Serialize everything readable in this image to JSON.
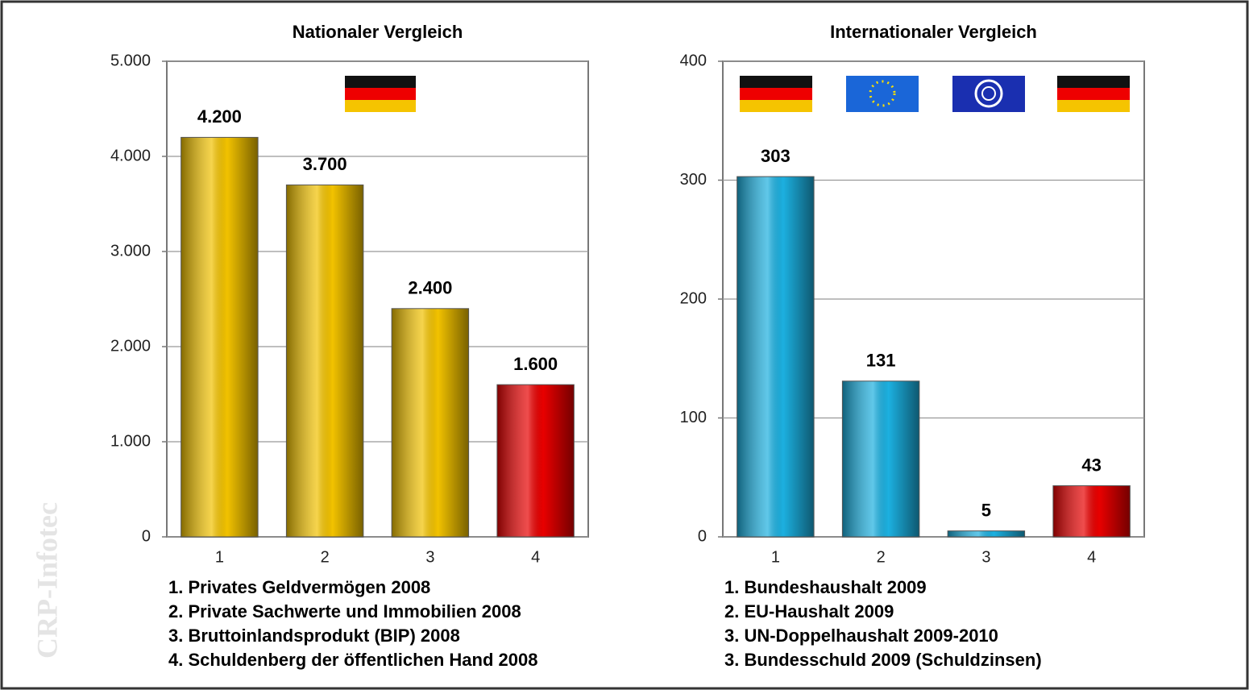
{
  "chart_data": [
    {
      "type": "bar",
      "title": "Nationaler Vergleich",
      "categories": [
        "1",
        "2",
        "3",
        "4"
      ],
      "values": [
        4200,
        3700,
        2400,
        1600
      ],
      "value_labels": [
        "4.200",
        "3.700",
        "2.400",
        "1.600"
      ],
      "colors": [
        "#f2c200",
        "#f2c200",
        "#f2c200",
        "#e80000"
      ],
      "ylim": [
        0,
        5000
      ],
      "yticks": [
        0,
        {
          "value": 1000,
          "label": "1.000"
        },
        {
          "value": 2000,
          "label": "2.000"
        },
        {
          "value": 3000,
          "label": "3.000"
        },
        {
          "value": 4000,
          "label": "4.000"
        },
        {
          "value": 5000,
          "label": "5.000"
        }
      ],
      "grid": true,
      "notes": [
        "1. Privates Geldvermögen 2008",
        "2. Private Sachwerte und Immobilien 2008",
        "3. Bruttoinlandsprodukt (BIP) 2008",
        "4. Schuldenberg der öffentlichen Hand 2008"
      ]
    },
    {
      "type": "bar",
      "title": "Internationaler Vergleich",
      "categories": [
        "1",
        "2",
        "3",
        "4"
      ],
      "values": [
        303,
        131,
        5,
        43
      ],
      "colors": [
        "#1cb0e0",
        "#1cb0e0",
        "#1cb0e0",
        "#e80000"
      ],
      "ylim": [
        0,
        400
      ],
      "yticks": [
        0,
        100,
        200,
        300,
        400
      ],
      "grid": true,
      "notes": [
        "1. Bundeshaushalt 2009",
        "2. EU-Haushalt 2009",
        "3. UN-Doppelhaushalt 2009-2010",
        "3. Bundesschuld 2009 (Schuldzinsen)"
      ]
    }
  ],
  "watermark": "CRP-Infotec"
}
